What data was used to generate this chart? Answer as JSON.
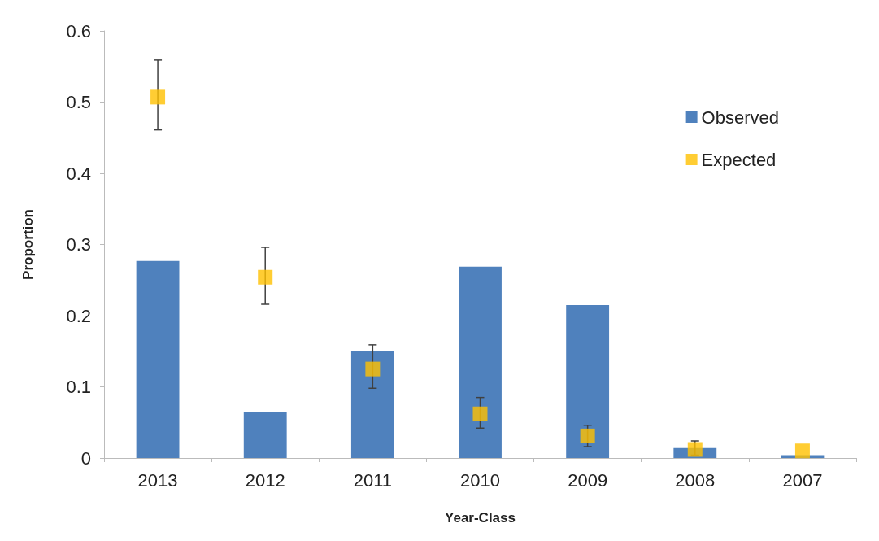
{
  "chart_data": {
    "type": "bar",
    "xlabel": "Year-Class",
    "ylabel": "Proportion",
    "categories": [
      "2013",
      "2012",
      "2011",
      "2010",
      "2009",
      "2008",
      "2007"
    ],
    "series": [
      {
        "name": "Observed",
        "color": "#4f81bd",
        "values": [
          0.277,
          0.065,
          0.151,
          0.269,
          0.215,
          0.014,
          0.004
        ]
      },
      {
        "name": "Expected",
        "type": "scatter",
        "color": "#ffc000",
        "marker": "square",
        "values": [
          0.507,
          0.254,
          0.125,
          0.062,
          0.031,
          0.012,
          0.01
        ],
        "errors": [
          [
            0.461,
            0.559
          ],
          [
            0.216,
            0.296
          ],
          [
            0.098,
            0.159
          ],
          [
            0.042,
            0.085
          ],
          [
            0.016,
            0.046
          ],
          [
            0.004,
            0.024
          ],
          null
        ]
      }
    ],
    "ylim": [
      0,
      0.6
    ],
    "yticks": [
      0,
      0.1,
      0.2,
      0.3,
      0.4,
      0.5,
      0.6
    ],
    "grid": false,
    "legend": "top right"
  }
}
